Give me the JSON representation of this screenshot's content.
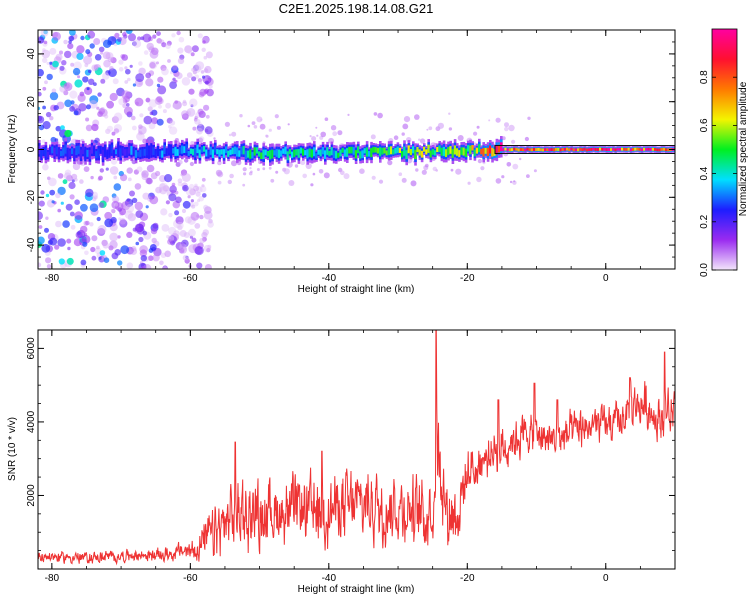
{
  "title": "C2E1.2025.198.14.08.G21",
  "chart_data": [
    {
      "type": "heatmap",
      "xlabel": "Height of straight line (km)",
      "ylabel": "Frequency (Hz)",
      "xlim": [
        -82,
        10
      ],
      "ylim": [
        -50,
        50
      ],
      "xticks": [
        -80,
        -60,
        -40,
        -20,
        0
      ],
      "yticks": [
        -40,
        -20,
        0,
        20,
        40
      ],
      "colorbar": {
        "label": "Normalized spectral amplitude",
        "range": [
          0,
          1
        ],
        "ticks": [
          0.0,
          0.2,
          0.4,
          0.6,
          0.8
        ],
        "colors": [
          "#f3e6fb",
          "#9a2bf0",
          "#1d1dff",
          "#00dfff",
          "#00f020",
          "#f4f400",
          "#ff7a00",
          "#ff1030",
          "#ff00a0"
        ]
      },
      "ridge": {
        "x": [
          -82,
          -70,
          -60,
          -50,
          -40,
          -30,
          -20,
          -15,
          -10,
          -5,
          0,
          5,
          10
        ],
        "y": [
          -1,
          -1,
          -0.5,
          -1.5,
          -1.5,
          -1,
          -0.5,
          0,
          0,
          0,
          0,
          0,
          0
        ],
        "amplitude": [
          0.25,
          0.28,
          0.35,
          0.45,
          0.4,
          0.55,
          0.55,
          0.9,
          0.82,
          0.85,
          0.9,
          0.9,
          0.88
        ]
      },
      "noise_region_x": [
        -82,
        -57
      ]
    },
    {
      "type": "line",
      "xlabel": "Height of straight line (km)",
      "ylabel": "SNR (10 * v/v)",
      "xlim": [
        -82,
        10
      ],
      "ylim": [
        0,
        6500
      ],
      "xticks": [
        -80,
        -60,
        -40,
        -20,
        0
      ],
      "yticks": [
        2000,
        4000,
        6000
      ],
      "series": [
        {
          "color": "#ee3333",
          "envelope": {
            "x": [
              -82,
              -75,
              -70,
              -65,
              -60,
              -57,
              -55,
              -53,
              -50,
              -45,
              -40,
              -35,
              -30,
              -27,
              -25,
              -24.5,
              -23,
              -21,
              -20,
              -18,
              -15,
              -12,
              -10,
              -7,
              -5,
              -2,
              0,
              2,
              5,
              8,
              10
            ],
            "mean": [
              350,
              300,
              350,
              380,
              500,
              900,
              1200,
              1500,
              1500,
              1600,
              1600,
              1800,
              1700,
              1500,
              1600,
              3500,
              1500,
              1700,
              2600,
              2900,
              3300,
              3700,
              3600,
              3500,
              3700,
              3900,
              3900,
              4000,
              4500,
              4100,
              4300
            ],
            "spread": [
              200,
              220,
              220,
              250,
              350,
              900,
              1100,
              1300,
              1200,
              1200,
              1200,
              1300,
              1200,
              1200,
              1300,
              1500,
              1200,
              1300,
              900,
              800,
              800,
              700,
              700,
              700,
              700,
              700,
              700,
              700,
              800,
              800,
              800
            ]
          },
          "peaks": [
            [
              -53.5,
              3450
            ],
            [
              -41,
              3200
            ],
            [
              -24.5,
              6500
            ],
            [
              -15.5,
              4600
            ],
            [
              -10.3,
              5050
            ],
            [
              -7,
              4600
            ],
            [
              3.5,
              5200
            ],
            [
              8.5,
              5900
            ]
          ]
        }
      ]
    }
  ]
}
